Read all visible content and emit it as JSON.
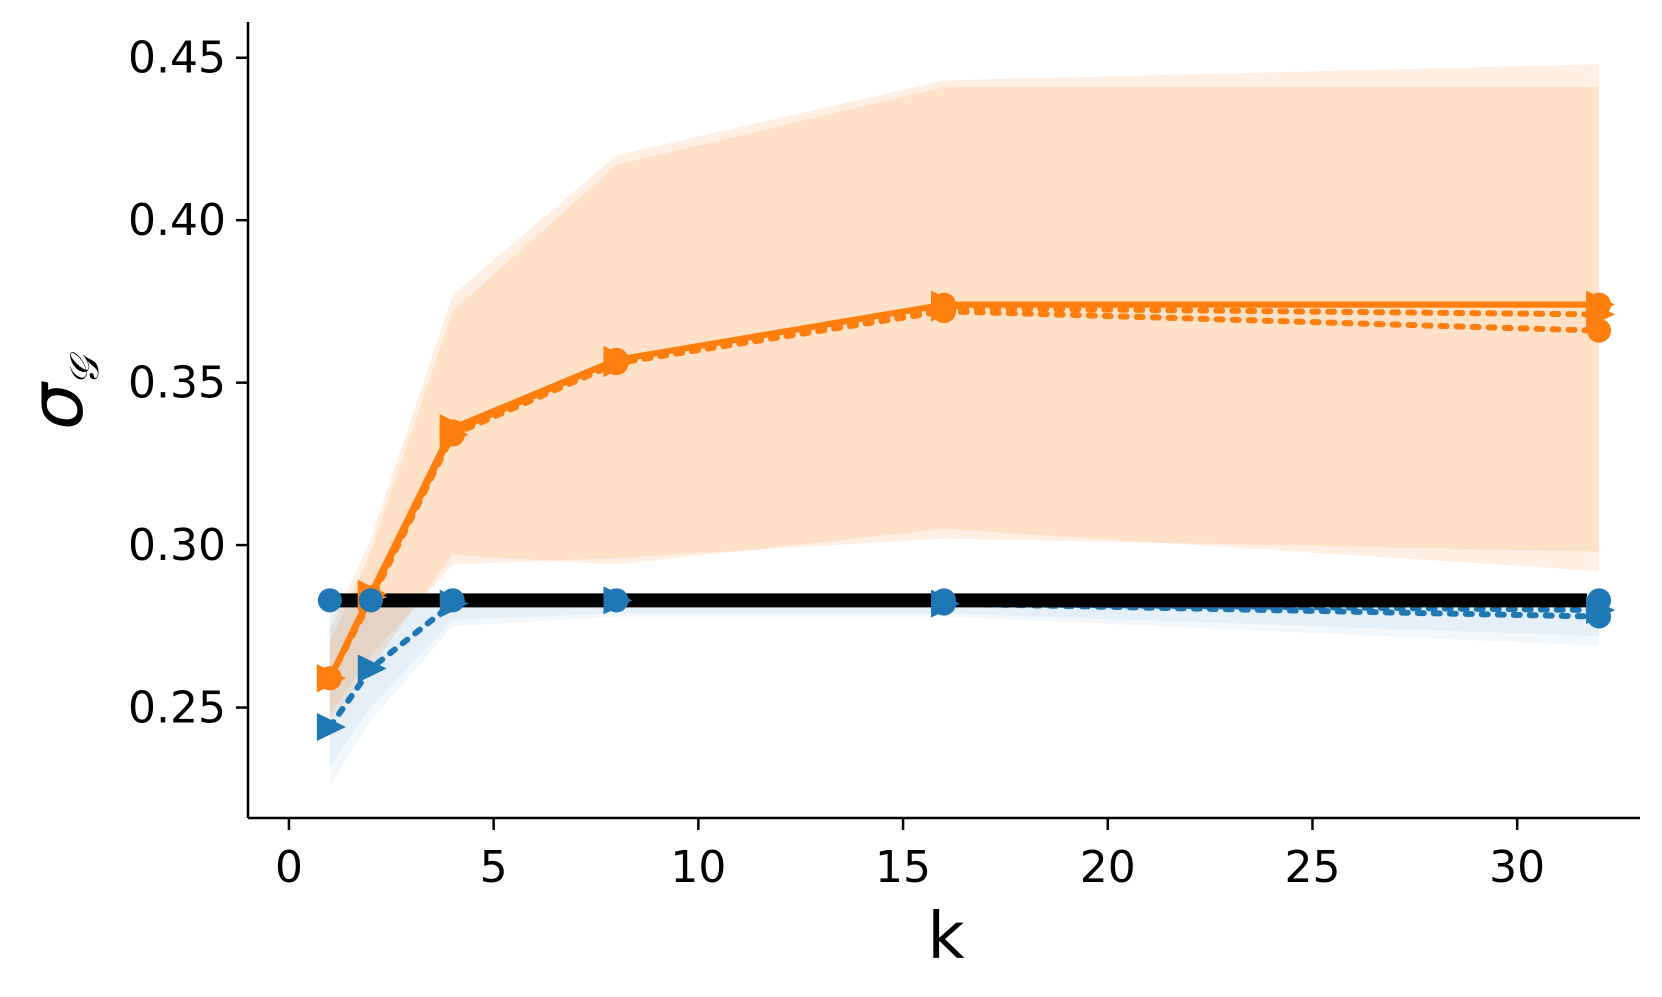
{
  "chart_data": {
    "type": "line",
    "xlabel": "k",
    "ylabel": "σ",
    "ylabel_sub": "𝒢",
    "xlim": [
      -1,
      33
    ],
    "ylim": [
      0.216,
      0.461
    ],
    "xticks": [
      0,
      5,
      10,
      15,
      20,
      25,
      30
    ],
    "yticks": [
      0.25,
      0.3,
      0.35,
      0.4,
      0.45
    ],
    "ytick_labels": [
      "0.25",
      "0.30",
      "0.35",
      "0.40",
      "0.45"
    ],
    "xtick_labels": [
      "0",
      "5",
      "10",
      "15",
      "20",
      "25",
      "30"
    ],
    "x": [
      1,
      2,
      4,
      8,
      16,
      32
    ],
    "colors": {
      "orange": "#ff7f0e",
      "blue": "#1f77b4",
      "black": "#000000"
    },
    "bands": [
      {
        "color": "orange",
        "upper": [
          0.27,
          0.298,
          0.372,
          0.417,
          0.441,
          0.441
        ],
        "lower": [
          0.248,
          0.266,
          0.294,
          0.296,
          0.302,
          0.298
        ]
      },
      {
        "color": "orange",
        "upper": [
          0.274,
          0.302,
          0.377,
          0.42,
          0.443,
          0.448
        ],
        "lower": [
          0.246,
          0.262,
          0.297,
          0.294,
          0.305,
          0.292
        ]
      },
      {
        "color": "blue",
        "upper": [
          0.283,
          0.283,
          0.285,
          0.285,
          0.285,
          0.285
        ],
        "lower": [
          0.226,
          0.246,
          0.275,
          0.278,
          0.278,
          0.269
        ]
      },
      {
        "color": "blue",
        "upper": [
          0.283,
          0.283,
          0.284,
          0.284,
          0.284,
          0.284
        ],
        "lower": [
          0.232,
          0.25,
          0.277,
          0.279,
          0.279,
          0.272
        ]
      }
    ],
    "series": [
      {
        "color": "orange",
        "style": "solid",
        "marker": "circle",
        "values": [
          0.259,
          0.284,
          0.335,
          0.357,
          0.374,
          0.374
        ]
      },
      {
        "color": "orange",
        "style": "solid",
        "marker": "triangle",
        "values": [
          0.259,
          0.285,
          0.336,
          0.357,
          0.374,
          0.374
        ]
      },
      {
        "color": "orange",
        "style": "dotted",
        "marker": "circle",
        "values": [
          0.259,
          0.283,
          0.334,
          0.356,
          0.372,
          0.366
        ]
      },
      {
        "color": "orange",
        "style": "dotted",
        "marker": "triangle",
        "values": [
          0.259,
          0.284,
          0.334,
          0.356,
          0.373,
          0.371
        ]
      },
      {
        "color": "blue",
        "style": "solid",
        "marker": "circle",
        "values": [
          0.283,
          0.283,
          0.283,
          0.283,
          0.283,
          0.283
        ]
      },
      {
        "color": "blue",
        "style": "dotted",
        "marker": "triangle",
        "values": [
          0.244,
          0.262,
          0.282,
          0.283,
          0.282,
          0.28
        ]
      },
      {
        "color": "blue",
        "style": "dotted",
        "marker": "circle",
        "values": [
          0.283,
          0.283,
          0.283,
          0.283,
          0.282,
          0.278
        ]
      },
      {
        "color": "black",
        "style": "solid",
        "marker": "none",
        "values": [
          0.283,
          0.283,
          0.283,
          0.283,
          0.283,
          0.283
        ]
      }
    ]
  }
}
